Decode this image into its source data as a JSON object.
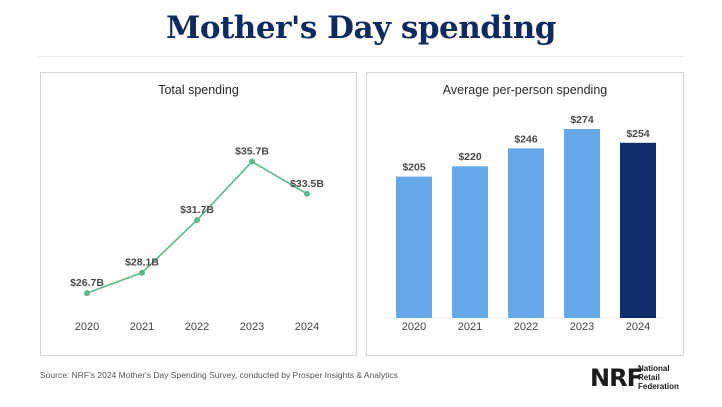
{
  "title": "Mother's Day spending",
  "source": "Source: NRF's 2024 Mother's Day Spending Survey, conducted by Prosper Insights & Analytics",
  "logo": {
    "mark": "NRF",
    "text_lines": [
      "National",
      "Retail",
      "Federation"
    ]
  },
  "chart_data": [
    {
      "type": "line",
      "title": "Total spending",
      "categories": [
        "2020",
        "2021",
        "2022",
        "2023",
        "2024"
      ],
      "values": [
        26.7,
        28.1,
        31.7,
        35.7,
        33.5
      ],
      "labels": [
        "$26.7B",
        "$28.1B",
        "$31.7B",
        "$35.7B",
        "$33.5B"
      ],
      "ylim": [
        25,
        38
      ],
      "color": "#5cb88a",
      "grid": false
    },
    {
      "type": "bar",
      "title": "Average per-person spending",
      "categories": [
        "2020",
        "2021",
        "2022",
        "2023",
        "2024"
      ],
      "values": [
        205,
        220,
        246,
        274,
        254
      ],
      "labels": [
        "$205",
        "$220",
        "$246",
        "$274",
        "$254"
      ],
      "ylim": [
        0,
        274
      ],
      "colors": [
        "#66a9ea",
        "#66a9ea",
        "#66a9ea",
        "#66a9ea",
        "#0f2f6b"
      ],
      "grid": false
    }
  ]
}
